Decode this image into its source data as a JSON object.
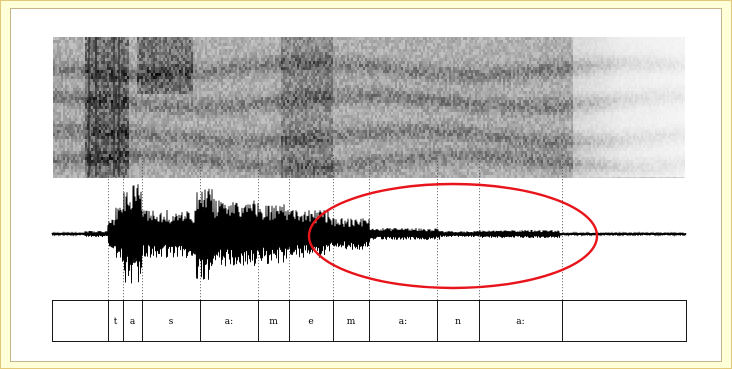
{
  "figure": {
    "segments": [
      {
        "label": ""
      },
      {
        "label": "t"
      },
      {
        "label": "a"
      },
      {
        "label": "s"
      },
      {
        "label": "a:"
      },
      {
        "label": "m"
      },
      {
        "label": "e"
      },
      {
        "label": "m"
      },
      {
        "label": "a:"
      },
      {
        "label": "n"
      },
      {
        "label": "a:"
      },
      {
        "label": ""
      }
    ],
    "highlight_color": "#e8141b",
    "waveform_color": "#000000",
    "spectrogram_color": "#555555"
  }
}
